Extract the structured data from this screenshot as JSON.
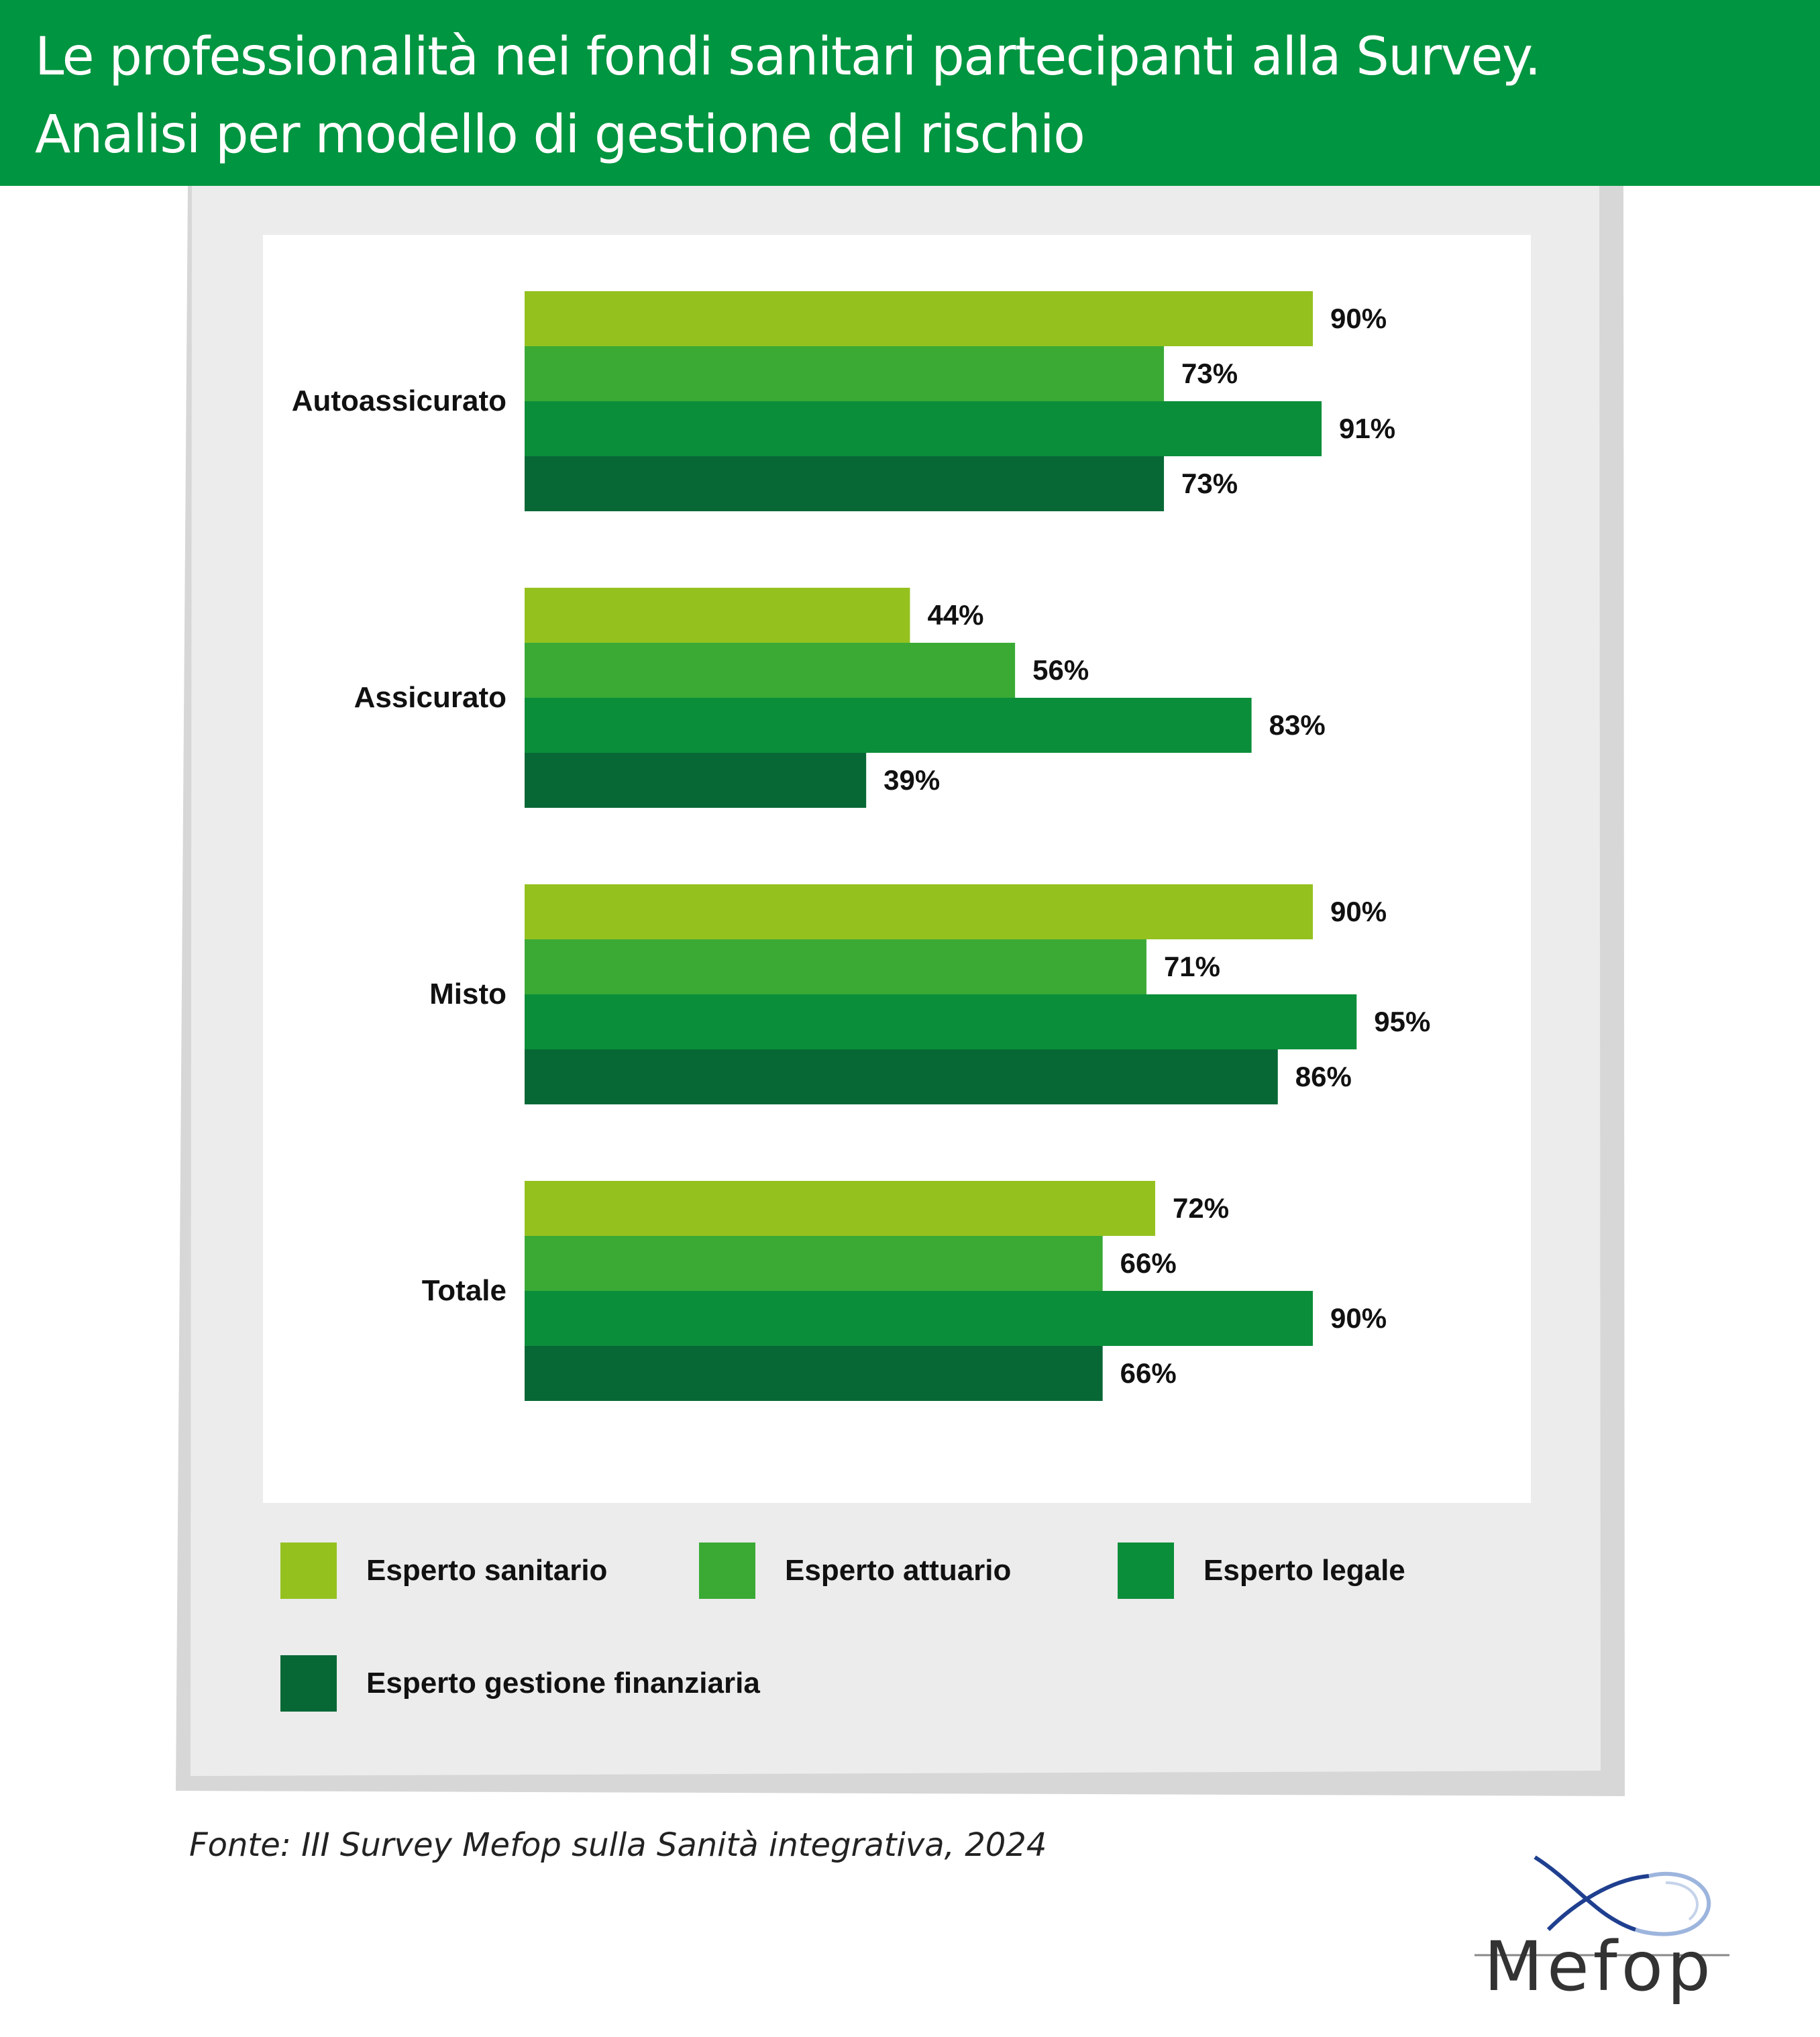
{
  "title": {
    "line1": "Le professionalità nei fondi sanitari partecipanti alla Survey.",
    "line2": "Analisi per modello di gestione del rischio"
  },
  "chart_data": {
    "type": "bar",
    "orientation": "horizontal",
    "categories": [
      "Autoassicurato",
      "Assicurato",
      "Misto",
      "Totale"
    ],
    "series": [
      {
        "name": "Esperto sanitario",
        "color": "#95c11f",
        "values": [
          90,
          44,
          90,
          72
        ]
      },
      {
        "name": "Esperto attuario",
        "color": "#3aaa35",
        "values": [
          73,
          56,
          71,
          66
        ]
      },
      {
        "name": "Esperto legale",
        "color": "#0b8e3a",
        "values": [
          91,
          83,
          95,
          90
        ]
      },
      {
        "name": "Esperto gestione finanziaria",
        "color": "#076836",
        "values": [
          73,
          39,
          86,
          66
        ]
      }
    ],
    "value_unit": "%",
    "xlim": [
      0,
      100
    ],
    "grid": false,
    "legend_position": "bottom"
  },
  "source": "Fonte: III Survey Mefop sulla Sanità integrativa, 2024",
  "logo": {
    "text": "Mefop"
  }
}
